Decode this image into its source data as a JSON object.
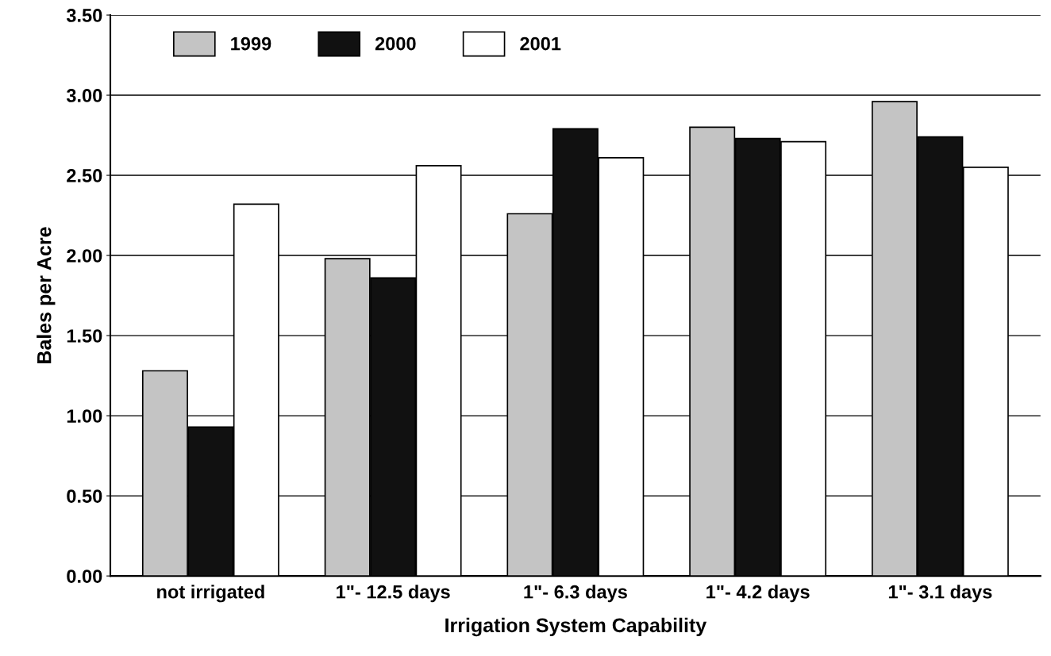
{
  "chart_data": {
    "type": "bar",
    "xlabel": "Irrigation System Capability",
    "ylabel": "Bales per Acre",
    "categories": [
      "not irrigated",
      "1\"- 12.5 days",
      "1\"- 6.3 days",
      "1\"- 4.2 days",
      "1\"- 3.1 days"
    ],
    "series": [
      {
        "name": "1999",
        "color": "#c4c4c4",
        "values": [
          1.28,
          1.98,
          2.26,
          2.8,
          2.96
        ]
      },
      {
        "name": "2000",
        "color": "#111111",
        "values": [
          0.93,
          1.86,
          2.79,
          2.73,
          2.74
        ]
      },
      {
        "name": "2001",
        "color": "#ffffff",
        "values": [
          2.32,
          2.56,
          2.61,
          2.71,
          2.55
        ]
      }
    ],
    "ylim": [
      0,
      3.5
    ],
    "yticks": [
      {
        "value": 0,
        "label": "0.00"
      },
      {
        "value": 0.5,
        "label": "0.50"
      },
      {
        "value": 1,
        "label": "1.00"
      },
      {
        "value": 1.5,
        "label": "1.50"
      },
      {
        "value": 2,
        "label": "2.00"
      },
      {
        "value": 2.5,
        "label": "2.50"
      },
      {
        "value": 3,
        "label": "3.00"
      },
      {
        "value": 3.5,
        "label": "3.50"
      }
    ],
    "grid": "y",
    "legend": "top left"
  }
}
